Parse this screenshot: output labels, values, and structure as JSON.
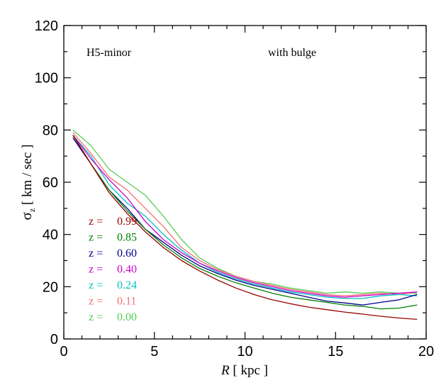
{
  "chart_data": {
    "type": "line",
    "xlabel_prefix": "R",
    "xlabel_suffix": " [ kpc ]",
    "ylabel_symbol": "σ",
    "ylabel_sub": "z",
    "ylabel_suffix": " [ km / sec ]",
    "annotation_left": "H5-minor",
    "annotation_right": "with bulge",
    "xlim": [
      0,
      20
    ],
    "ylim": [
      0,
      120
    ],
    "x_ticks": [
      0,
      5,
      10,
      15,
      20
    ],
    "y_ticks": [
      0,
      20,
      40,
      60,
      80,
      100,
      120
    ],
    "legend_prefix": "z =",
    "series": [
      {
        "name": "0.99",
        "color": "#990000",
        "x": [
          0.5,
          1.5,
          2.5,
          3.5,
          4.5,
          5.5,
          6.5,
          7.5,
          8.5,
          9.5,
          10.5,
          11.5,
          12.5,
          13.5,
          14.5,
          15.5,
          16.5,
          17.5,
          18.5,
          19.5
        ],
        "y": [
          78,
          67,
          56,
          48,
          41,
          35,
          30,
          26,
          22.5,
          19.5,
          17,
          15,
          13.5,
          12.2,
          11.2,
          10.3,
          9.5,
          8.7,
          8.0,
          7.5
        ]
      },
      {
        "name": "0.85",
        "color": "#008000",
        "x": [
          0.5,
          1.5,
          2.5,
          3.5,
          4.5,
          5.5,
          6.5,
          7.5,
          8.5,
          9.5,
          10.5,
          11.5,
          12.5,
          13.5,
          14.5,
          15.5,
          16.5,
          17.5,
          18.5,
          19.5
        ],
        "y": [
          78,
          67,
          57,
          49,
          42,
          36,
          31,
          27,
          24,
          21.5,
          19.5,
          17.5,
          16,
          15,
          14,
          13,
          12.5,
          11.5,
          11.8,
          13
        ]
      },
      {
        "name": "0.60",
        "color": "#00008b",
        "x": [
          0.5,
          1.5,
          2.5,
          3.5,
          4.5,
          5.5,
          6.5,
          7.5,
          8.5,
          9.5,
          10.5,
          11.5,
          12.5,
          13.5,
          14.5,
          15.5,
          16.5,
          17.5,
          18.5,
          19.5
        ],
        "y": [
          77,
          67,
          57,
          50,
          42,
          37,
          32,
          28,
          25,
          22.5,
          20.5,
          19,
          17.5,
          16,
          14.5,
          13.8,
          13,
          14,
          15,
          17
        ]
      },
      {
        "name": "0.40",
        "color": "#cc00cc",
        "x": [
          0.5,
          1.5,
          2.5,
          3.5,
          4.5,
          5.5,
          6.5,
          7.5,
          8.5,
          9.5,
          10.5,
          11.5,
          12.5,
          13.5,
          14.5,
          15.5,
          16.5,
          17.5,
          18.5,
          19.5
        ],
        "y": [
          78,
          69,
          61,
          54,
          45,
          38,
          33,
          29,
          26,
          23.5,
          21.5,
          20,
          18.5,
          17.5,
          16.5,
          16,
          16.5,
          17,
          17.5,
          18
        ]
      },
      {
        "name": "0.24",
        "color": "#00bfbf",
        "x": [
          0.5,
          1.5,
          2.5,
          3.5,
          4.5,
          5.5,
          6.5,
          7.5,
          8.5,
          9.5,
          10.5,
          11.5,
          12.5,
          13.5,
          14.5,
          15.5,
          16.5,
          17.5,
          18.5,
          19.5
        ],
        "y": [
          78,
          70,
          59,
          52,
          47,
          40,
          34,
          29,
          25.5,
          23,
          21,
          19.5,
          18,
          17,
          16,
          15.5,
          15.5,
          16.5,
          17,
          16.5
        ]
      },
      {
        "name": "0.11",
        "color": "#f07070",
        "x": [
          0.5,
          1.5,
          2.5,
          3.5,
          4.5,
          5.5,
          6.5,
          7.5,
          8.5,
          9.5,
          10.5,
          11.5,
          12.5,
          13.5,
          14.5,
          15.5,
          16.5,
          17.5,
          18.5,
          19.5
        ],
        "y": [
          79,
          71,
          62,
          57,
          50,
          43,
          35,
          30,
          26.5,
          24,
          22,
          20.5,
          19,
          18,
          17,
          16.5,
          17,
          17.5,
          17,
          18
        ]
      },
      {
        "name": "0.00",
        "color": "#55cc55",
        "x": [
          0.5,
          1.5,
          2.5,
          3.5,
          4.5,
          5.5,
          6.5,
          7.5,
          8.5,
          9.5,
          10.5,
          11.5,
          12.5,
          13.5,
          14.5,
          15.5,
          16.5,
          17.5,
          18.5,
          19.5
        ],
        "y": [
          80,
          74,
          65,
          60,
          55,
          47,
          38,
          31,
          27,
          24,
          22,
          21,
          19.5,
          18.5,
          17.5,
          18,
          17.5,
          18,
          17.5,
          17.5
        ]
      }
    ]
  }
}
